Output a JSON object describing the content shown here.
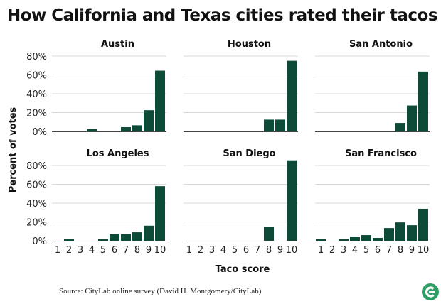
{
  "title": "How California and Texas cities rated their tacos",
  "source": "Source: CityLab online survey (David H. Montgomery/CityLab)",
  "logo_icon": "citylab-logo-icon",
  "colors": {
    "bar": "#0d4a37",
    "grid": "#d9d9d9",
    "axis": "#444444",
    "logo": "#2e9e64"
  },
  "chart_data": {
    "type": "bar",
    "xlabel": "Taco score",
    "ylabel": "Percent of votes",
    "ylim": [
      0,
      80
    ],
    "yticks": [
      "0%",
      "20%",
      "40%",
      "60%",
      "80%"
    ],
    "categories": [
      "1",
      "2",
      "3",
      "4",
      "5",
      "6",
      "7",
      "8",
      "9",
      "10"
    ],
    "panels": [
      {
        "name": "Austin",
        "values": [
          0,
          0,
          0,
          2.5,
          0,
          0,
          4.5,
          6.5,
          22.5,
          64.5
        ]
      },
      {
        "name": "Houston",
        "values": [
          0,
          0,
          0,
          0,
          0,
          0,
          0,
          12.5,
          12.5,
          75
        ]
      },
      {
        "name": "San Antonio",
        "values": [
          0,
          0,
          0,
          0,
          0,
          0,
          0,
          9,
          27.5,
          63.5
        ]
      },
      {
        "name": "Los Angeles",
        "values": [
          0,
          1.5,
          0,
          0,
          1.5,
          7,
          7,
          9,
          16,
          58
        ]
      },
      {
        "name": "San Diego",
        "values": [
          0,
          0,
          0,
          0,
          0,
          0,
          0,
          14.5,
          0,
          85.5
        ]
      },
      {
        "name": "San Francisco",
        "values": [
          1.5,
          0,
          1.5,
          4.5,
          6,
          3,
          13.5,
          19.5,
          16.5,
          34
        ]
      }
    ]
  }
}
